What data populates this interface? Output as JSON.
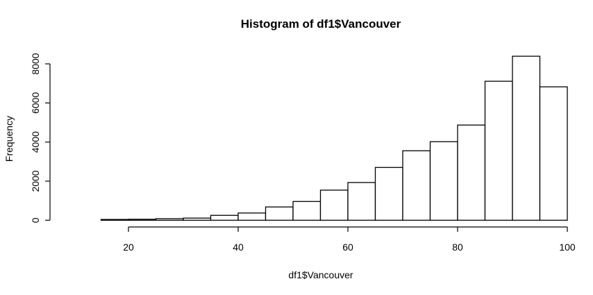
{
  "chart_data": {
    "type": "bar",
    "title": "Histogram of df1$Vancouver",
    "xlabel": "df1$Vancouver",
    "ylabel": "Frequency",
    "bin_edges": [
      10,
      15,
      20,
      25,
      30,
      35,
      40,
      45,
      50,
      55,
      60,
      65,
      70,
      75,
      80,
      85,
      90,
      95,
      100
    ],
    "values": [
      0,
      40,
      50,
      80,
      110,
      250,
      370,
      680,
      960,
      1540,
      1930,
      2700,
      3555,
      4020,
      4870,
      7110,
      8390,
      6825
    ],
    "xlim": [
      10,
      100
    ],
    "ylim": [
      0,
      8400
    ],
    "x_ticks": [
      20,
      40,
      60,
      80,
      100
    ],
    "y_ticks": [
      0,
      2000,
      4000,
      6000,
      8000
    ],
    "grid": false,
    "bar_fill": "#ffffff",
    "bar_stroke": "#000000"
  }
}
